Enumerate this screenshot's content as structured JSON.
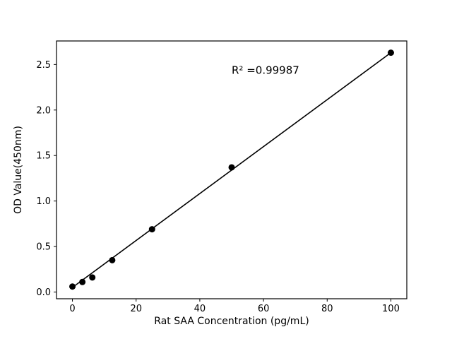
{
  "figure": {
    "background": "#ffffff"
  },
  "chart_data": {
    "type": "scatter",
    "title": "",
    "xlabel": "Rat SAA Concentration (pg/mL)",
    "ylabel": "OD Value(450nm)",
    "x": [
      0,
      3.125,
      6.25,
      12.5,
      25,
      50,
      100
    ],
    "y": [
      0.06,
      0.11,
      0.16,
      0.35,
      0.69,
      1.37,
      2.63
    ],
    "fit_line": {
      "x": [
        0,
        100
      ],
      "y": [
        0.05,
        2.63
      ]
    },
    "annotation": {
      "text": "R² =0.99987",
      "x": 50,
      "y": 2.4
    },
    "xlim": [
      -5,
      105
    ],
    "ylim": [
      -0.074,
      2.759
    ],
    "xticks": [
      0,
      20,
      40,
      60,
      80,
      100
    ],
    "yticks": [
      0.0,
      0.5,
      1.0,
      1.5,
      2.0,
      2.5
    ],
    "grid": false,
    "legend": null,
    "marker_color": "#000000",
    "line_color": "#000000",
    "axis_color": "#000000"
  }
}
